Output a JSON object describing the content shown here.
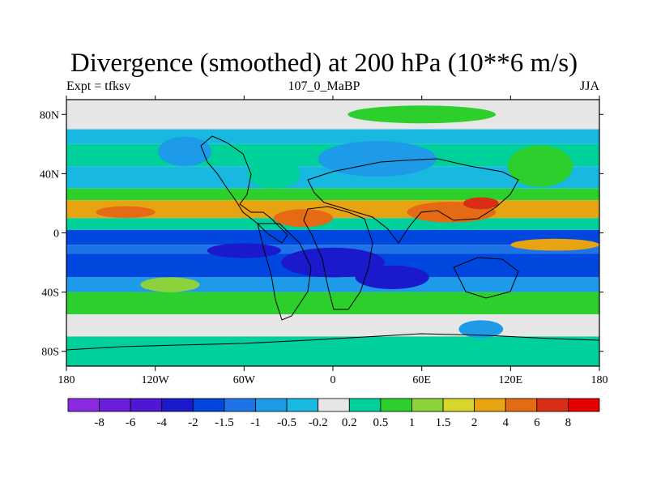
{
  "chart_data": {
    "type": "heatmap",
    "title": "Divergence (smoothed) at 200 hPa (10**6 m/s)",
    "left_label": "Expt = tfksv",
    "center_label": "107_0_MaBP",
    "right_label": "JJA",
    "x_axis": {
      "range": [
        -180,
        180
      ],
      "ticks": [
        {
          "value": -180,
          "label": "180"
        },
        {
          "value": -120,
          "label": "120W"
        },
        {
          "value": -60,
          "label": "60W"
        },
        {
          "value": 0,
          "label": "0"
        },
        {
          "value": 60,
          "label": "60E"
        },
        {
          "value": 120,
          "label": "120E"
        },
        {
          "value": 180,
          "label": "180"
        }
      ]
    },
    "y_axis": {
      "range": [
        -90,
        90
      ],
      "ticks": [
        {
          "value": 80,
          "label": "80N"
        },
        {
          "value": 40,
          "label": "40N"
        },
        {
          "value": 0,
          "label": "0"
        },
        {
          "value": -40,
          "label": "40S"
        },
        {
          "value": -80,
          "label": "80S"
        }
      ]
    },
    "colorbar": {
      "levels": [
        "-8",
        "-6",
        "-4",
        "-2",
        "-1.5",
        "-1",
        "-0.5",
        "-0.2",
        "0.2",
        "0.5",
        "1",
        "1.5",
        "2",
        "4",
        "6",
        "8"
      ],
      "colors": [
        "#8a2be2",
        "#6a1ed9",
        "#4d17d3",
        "#1a1acc",
        "#0047e0",
        "#1e74e6",
        "#1e9be8",
        "#19b8e0",
        "#e6e6e6",
        "#00d09a",
        "#2ccf2c",
        "#8cd23c",
        "#d6d62c",
        "#e8a312",
        "#e46a14",
        "#d92e14",
        "#e60000"
      ]
    },
    "bands": [
      {
        "lat": [
          90,
          70
        ],
        "class": 8
      },
      {
        "lat": [
          70,
          60
        ],
        "class": 7
      },
      {
        "lat": [
          60,
          45
        ],
        "class": 9
      },
      {
        "lat": [
          45,
          30
        ],
        "class": 7
      },
      {
        "lat": [
          30,
          22
        ],
        "class": 10
      },
      {
        "lat": [
          22,
          10
        ],
        "class": 13
      },
      {
        "lat": [
          10,
          2
        ],
        "class": 9
      },
      {
        "lat": [
          2,
          -8
        ],
        "class": 4
      },
      {
        "lat": [
          -8,
          -14
        ],
        "class": 5
      },
      {
        "lat": [
          -14,
          -30
        ],
        "class": 4
      },
      {
        "lat": [
          -30,
          -40
        ],
        "class": 6
      },
      {
        "lat": [
          -40,
          -55
        ],
        "class": 10
      },
      {
        "lat": [
          -55,
          -70
        ],
        "class": 8
      },
      {
        "lat": [
          -70,
          -90
        ],
        "class": 9
      }
    ],
    "blobs": [
      {
        "lon": -20,
        "lat": 10,
        "rlon": 20,
        "rlat": 6,
        "class": 14
      },
      {
        "lon": 80,
        "lat": 14,
        "rlon": 30,
        "rlat": 7,
        "class": 14
      },
      {
        "lon": 100,
        "lat": 20,
        "rlon": 12,
        "rlat": 4,
        "class": 15
      },
      {
        "lon": -140,
        "lat": 14,
        "rlon": 20,
        "rlat": 4,
        "class": 14
      },
      {
        "lon": 30,
        "lat": 50,
        "rlon": 40,
        "rlat": 12,
        "class": 6
      },
      {
        "lon": -40,
        "lat": 40,
        "rlon": 18,
        "rlat": 10,
        "class": 9
      },
      {
        "lon": 140,
        "lat": 45,
        "rlon": 22,
        "rlat": 14,
        "class": 10
      },
      {
        "lon": -100,
        "lat": 55,
        "rlon": 18,
        "rlat": 10,
        "class": 6
      },
      {
        "lon": 0,
        "lat": -20,
        "rlon": 35,
        "rlat": 10,
        "class": 3
      },
      {
        "lon": 40,
        "lat": -30,
        "rlon": 25,
        "rlat": 8,
        "class": 3
      },
      {
        "lon": -60,
        "lat": -12,
        "rlon": 25,
        "rlat": 5,
        "class": 3
      },
      {
        "lon": 100,
        "lat": -65,
        "rlon": 15,
        "rlat": 6,
        "class": 6
      },
      {
        "lon": -110,
        "lat": -35,
        "rlon": 20,
        "rlat": 5,
        "class": 11
      },
      {
        "lon": 150,
        "lat": -8,
        "rlon": 30,
        "rlat": 4,
        "class": 13
      },
      {
        "lon": 60,
        "lat": 80,
        "rlon": 50,
        "rlat": 6,
        "class": 10
      }
    ]
  }
}
